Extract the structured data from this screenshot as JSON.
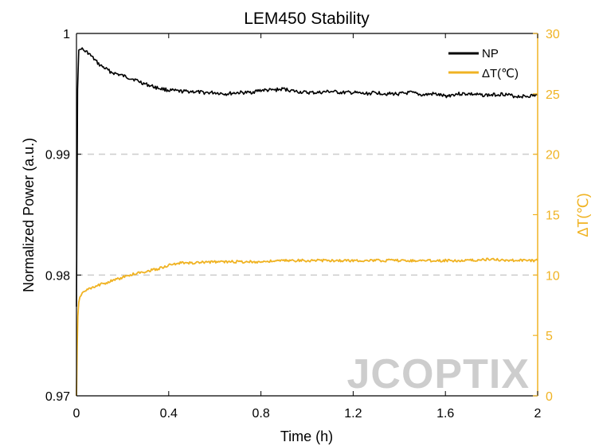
{
  "chart_data": {
    "type": "line",
    "title": "LEM450 Stability",
    "xlabel": "Time (h)",
    "ylabel_left": "Normalized Power (a.u.)",
    "ylabel_right": "ΔT(℃)",
    "xlim": [
      0,
      2
    ],
    "ylim_left": [
      0.97,
      1
    ],
    "ylim_right": [
      0,
      30
    ],
    "x_ticks": [
      "0",
      "0.4",
      "0.8",
      "1.2",
      "1.6",
      "2"
    ],
    "x_tick_values": [
      0,
      0.4,
      0.8,
      1.2,
      1.6,
      2
    ],
    "y_left_ticks": [
      "0.97",
      "0.98",
      "0.99",
      "1"
    ],
    "y_left_tick_values": [
      0.97,
      0.98,
      0.99,
      1
    ],
    "y_right_ticks": [
      "0",
      "5",
      "10",
      "15",
      "20",
      "25",
      "30"
    ],
    "y_right_tick_values": [
      0,
      5,
      10,
      15,
      20,
      25,
      30
    ],
    "grid": "dashed horizontal at left-axis ticks",
    "legend_position": "top-right",
    "watermark": "JCOPTIX",
    "colors": {
      "NP": "#000000",
      "dT": "#f0b323",
      "grid": "#cccccc"
    },
    "series": [
      {
        "name": "NP",
        "axis": "left",
        "x": [
          0,
          0.005,
          0.01,
          0.02,
          0.03,
          0.05,
          0.08,
          0.1,
          0.15,
          0.2,
          0.25,
          0.3,
          0.35,
          0.4,
          0.45,
          0.5,
          0.55,
          0.6,
          0.65,
          0.7,
          0.75,
          0.8,
          0.85,
          0.9,
          0.95,
          1.0,
          1.05,
          1.1,
          1.15,
          1.2,
          1.25,
          1.3,
          1.35,
          1.4,
          1.45,
          1.5,
          1.55,
          1.6,
          1.65,
          1.7,
          1.75,
          1.8,
          1.85,
          1.9,
          1.95,
          2.0
        ],
        "values": [
          0.9775,
          0.9955,
          0.9985,
          0.9988,
          0.9986,
          0.9984,
          0.9978,
          0.9974,
          0.9968,
          0.9965,
          0.9962,
          0.9958,
          0.9955,
          0.9953,
          0.9952,
          0.9952,
          0.9951,
          0.9951,
          0.995,
          0.9951,
          0.9951,
          0.9953,
          0.9953,
          0.9954,
          0.9952,
          0.9951,
          0.9951,
          0.9952,
          0.9951,
          0.9951,
          0.995,
          0.9951,
          0.995,
          0.995,
          0.9951,
          0.9949,
          0.995,
          0.9948,
          0.995,
          0.995,
          0.9949,
          0.9949,
          0.995,
          0.9948,
          0.9948,
          0.9949
        ]
      },
      {
        "name": "ΔT(℃)",
        "axis": "right",
        "x": [
          0,
          0.003,
          0.006,
          0.01,
          0.02,
          0.03,
          0.05,
          0.08,
          0.1,
          0.15,
          0.2,
          0.25,
          0.3,
          0.35,
          0.4,
          0.45,
          0.5,
          0.6,
          0.7,
          0.8,
          0.9,
          1.0,
          1.1,
          1.2,
          1.3,
          1.4,
          1.5,
          1.6,
          1.7,
          1.8,
          1.9,
          2.0
        ],
        "values": [
          0,
          4.0,
          6.5,
          7.8,
          8.4,
          8.6,
          8.8,
          9.0,
          9.2,
          9.5,
          9.8,
          10.1,
          10.3,
          10.5,
          10.8,
          11.0,
          11.0,
          11.1,
          11.1,
          11.1,
          11.2,
          11.2,
          11.2,
          11.2,
          11.2,
          11.2,
          11.2,
          11.2,
          11.2,
          11.3,
          11.2,
          11.2
        ]
      }
    ]
  }
}
